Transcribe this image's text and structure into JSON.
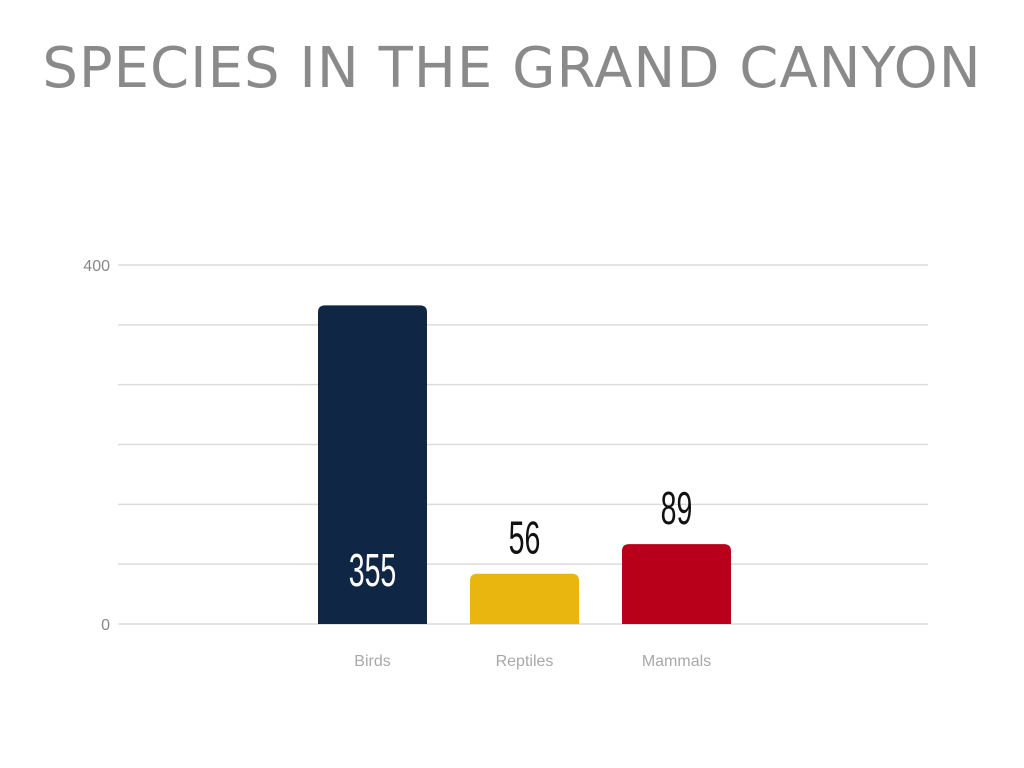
{
  "chart_data": {
    "type": "bar",
    "title": "SPECIES IN THE GRAND CANYON",
    "xlabel": "",
    "ylabel": "",
    "categories": [
      "Birds",
      "Reptiles",
      "Mammals"
    ],
    "values": [
      355,
      56,
      89
    ],
    "value_labels": [
      "355",
      "56",
      "89"
    ],
    "colors": [
      "#0f2645",
      "#e9b50f",
      "#b8001a"
    ],
    "ylim": [
      0,
      400
    ],
    "y_tick_labels": [
      "0",
      "400"
    ],
    "gridline_count": 7,
    "grid": true,
    "legend": "none"
  }
}
